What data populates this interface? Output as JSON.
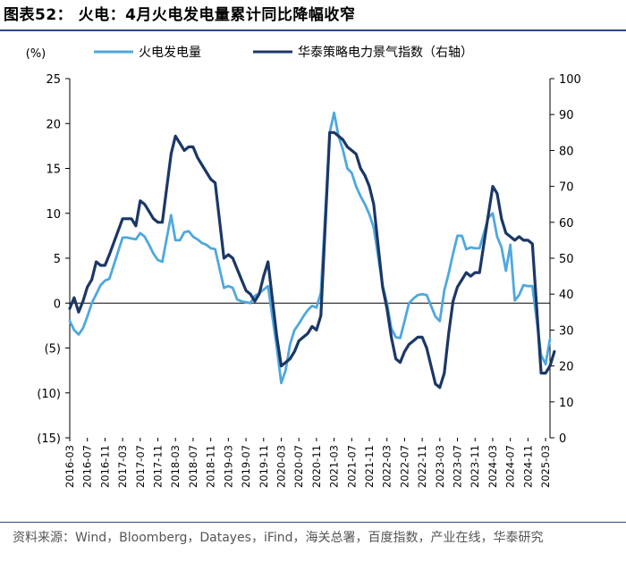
{
  "header": {
    "title": "图表52：  火电：4月火电发电量累计同比降幅收窄"
  },
  "footer": {
    "source": "资料来源：Wind，Bloomberg，Datayes，iFind，海关总署，百度指数，产业在线，华泰研究"
  },
  "colors": {
    "series_light": "#4ea8de",
    "series_dark": "#1b3766",
    "rule": "#2b4a7a"
  },
  "chart_data": {
    "type": "line",
    "left_axis": {
      "unit_label": "(%)",
      "ylim": [
        -15,
        25
      ],
      "ticks": [
        25,
        20,
        15,
        10,
        5,
        0,
        -5,
        -10,
        -15
      ],
      "tick_labels": [
        "25",
        "20",
        "15",
        "10",
        "5",
        "0",
        "(5)",
        "(10)",
        "(15)"
      ]
    },
    "right_axis": {
      "ylim": [
        0,
        100
      ],
      "ticks": [
        100,
        90,
        80,
        70,
        60,
        50,
        40,
        30,
        20,
        10,
        0
      ],
      "tick_labels": [
        "100",
        "90",
        "80",
        "70",
        "60",
        "50",
        "40",
        "30",
        "20",
        "10",
        "0"
      ]
    },
    "x_tick_labels": [
      "2016-03",
      "2016-07",
      "2016-11",
      "2017-03",
      "2017-07",
      "2017-11",
      "2018-03",
      "2018-07",
      "2018-11",
      "2019-03",
      "2019-07",
      "2019-11",
      "2020-03",
      "2020-07",
      "2020-11",
      "2021-03",
      "2021-07",
      "2021-11",
      "2022-03",
      "2022-07",
      "2022-11",
      "2023-03",
      "2023-07",
      "2023-11",
      "2024-03",
      "2024-07",
      "2024-11",
      "2025-03"
    ],
    "x_start": "2016-03",
    "x_end": "2025-04",
    "grid": false,
    "legend_position": "top",
    "series": [
      {
        "name": "火电发电量",
        "axis": "left",
        "color": "#4ea8de",
        "points": [
          [
            "2016-03",
            -2.0
          ],
          [
            "2016-04",
            -3.0
          ],
          [
            "2016-05",
            -3.5
          ],
          [
            "2016-06",
            -2.8
          ],
          [
            "2016-07",
            -1.5
          ],
          [
            "2016-08",
            0.0
          ],
          [
            "2016-09",
            1.0
          ],
          [
            "2016-10",
            2.0
          ],
          [
            "2016-11",
            2.5
          ],
          [
            "2016-12",
            2.7
          ],
          [
            "2017-03",
            7.3
          ],
          [
            "2017-04",
            7.3
          ],
          [
            "2017-05",
            7.2
          ],
          [
            "2017-06",
            7.1
          ],
          [
            "2017-07",
            7.8
          ],
          [
            "2017-08",
            7.4
          ],
          [
            "2017-09",
            6.5
          ],
          [
            "2017-10",
            5.5
          ],
          [
            "2017-11",
            4.8
          ],
          [
            "2017-12",
            4.6
          ],
          [
            "2018-02",
            9.8
          ],
          [
            "2018-03",
            7.0
          ],
          [
            "2018-04",
            7.0
          ],
          [
            "2018-05",
            7.9
          ],
          [
            "2018-06",
            8.0
          ],
          [
            "2018-07",
            7.4
          ],
          [
            "2018-08",
            7.1
          ],
          [
            "2018-09",
            6.7
          ],
          [
            "2018-10",
            6.5
          ],
          [
            "2018-11",
            6.1
          ],
          [
            "2018-12",
            6.0
          ],
          [
            "2019-02",
            1.7
          ],
          [
            "2019-03",
            1.9
          ],
          [
            "2019-04",
            1.7
          ],
          [
            "2019-05",
            0.4
          ],
          [
            "2019-06",
            0.2
          ],
          [
            "2019-07",
            0.1
          ],
          [
            "2019-08",
            0.0
          ],
          [
            "2019-09",
            0.8
          ],
          [
            "2019-10",
            1.1
          ],
          [
            "2019-11",
            1.5
          ],
          [
            "2019-12",
            1.9
          ],
          [
            "2020-02",
            -5.0
          ],
          [
            "2020-03",
            -8.9
          ],
          [
            "2020-04",
            -7.5
          ],
          [
            "2020-05",
            -4.6
          ],
          [
            "2020-06",
            -3.0
          ],
          [
            "2020-07",
            -2.3
          ],
          [
            "2020-08",
            -1.5
          ],
          [
            "2020-09",
            -0.8
          ],
          [
            "2020-10",
            -0.3
          ],
          [
            "2020-11",
            -0.5
          ],
          [
            "2020-12",
            1.2
          ],
          [
            "2021-02",
            19.0
          ],
          [
            "2021-03",
            21.2
          ],
          [
            "2021-04",
            18.6
          ],
          [
            "2021-05",
            17.1
          ],
          [
            "2021-06",
            15.0
          ],
          [
            "2021-07",
            14.5
          ],
          [
            "2021-08",
            13.0
          ],
          [
            "2021-09",
            11.9
          ],
          [
            "2021-10",
            11.0
          ],
          [
            "2021-11",
            9.9
          ],
          [
            "2021-12",
            8.4
          ],
          [
            "2022-02",
            2.0
          ],
          [
            "2022-03",
            0.0
          ],
          [
            "2022-04",
            -2.8
          ],
          [
            "2022-05",
            -3.8
          ],
          [
            "2022-06",
            -3.9
          ],
          [
            "2022-07",
            -2.0
          ],
          [
            "2022-08",
            0.0
          ],
          [
            "2022-09",
            0.5
          ],
          [
            "2022-10",
            0.9
          ],
          [
            "2022-11",
            1.0
          ],
          [
            "2022-12",
            0.9
          ],
          [
            "2023-02",
            -1.5
          ],
          [
            "2023-03",
            -2.0
          ],
          [
            "2023-04",
            1.4
          ],
          [
            "2023-05",
            3.3
          ],
          [
            "2023-06",
            5.5
          ],
          [
            "2023-07",
            7.5
          ],
          [
            "2023-08",
            7.5
          ],
          [
            "2023-09",
            6.0
          ],
          [
            "2023-10",
            6.2
          ],
          [
            "2023-11",
            6.1
          ],
          [
            "2023-12",
            6.1
          ],
          [
            "2024-02",
            9.5
          ],
          [
            "2024-03",
            10.0
          ],
          [
            "2024-04",
            7.4
          ],
          [
            "2024-05",
            6.2
          ],
          [
            "2024-06",
            3.6
          ],
          [
            "2024-07",
            6.5
          ],
          [
            "2024-08",
            0.3
          ],
          [
            "2024-09",
            0.9
          ],
          [
            "2024-10",
            2.0
          ],
          [
            "2024-11",
            1.9
          ],
          [
            "2024-12",
            1.9
          ],
          [
            "2025-02",
            -5.8
          ],
          [
            "2025-03",
            -6.8
          ],
          [
            "2025-04",
            -4.0
          ]
        ]
      },
      {
        "name": "华泰策略电力景气指数（右轴）",
        "axis": "right",
        "color": "#1b3766",
        "points": [
          [
            "2016-03",
            36
          ],
          [
            "2016-04",
            39
          ],
          [
            "2016-05",
            35
          ],
          [
            "2016-06",
            38
          ],
          [
            "2016-07",
            42
          ],
          [
            "2016-08",
            44
          ],
          [
            "2016-09",
            49
          ],
          [
            "2016-10",
            48
          ],
          [
            "2016-11",
            48
          ],
          [
            "2016-12",
            51
          ],
          [
            "2017-03",
            61
          ],
          [
            "2017-04",
            61
          ],
          [
            "2017-05",
            61
          ],
          [
            "2017-06",
            59
          ],
          [
            "2017-07",
            66
          ],
          [
            "2017-08",
            65
          ],
          [
            "2017-09",
            63
          ],
          [
            "2017-10",
            61
          ],
          [
            "2017-11",
            60
          ],
          [
            "2017-12",
            60
          ],
          [
            "2018-02",
            79
          ],
          [
            "2018-03",
            84
          ],
          [
            "2018-04",
            82
          ],
          [
            "2018-05",
            80
          ],
          [
            "2018-06",
            81
          ],
          [
            "2018-07",
            81
          ],
          [
            "2018-08",
            78
          ],
          [
            "2018-09",
            76
          ],
          [
            "2018-10",
            74
          ],
          [
            "2018-11",
            72
          ],
          [
            "2018-12",
            71
          ],
          [
            "2019-02",
            50
          ],
          [
            "2019-03",
            51
          ],
          [
            "2019-04",
            50
          ],
          [
            "2019-05",
            47
          ],
          [
            "2019-06",
            44
          ],
          [
            "2019-07",
            41
          ],
          [
            "2019-08",
            40
          ],
          [
            "2019-09",
            38
          ],
          [
            "2019-10",
            40
          ],
          [
            "2019-11",
            45
          ],
          [
            "2019-12",
            49
          ],
          [
            "2020-02",
            28
          ],
          [
            "2020-03",
            20
          ],
          [
            "2020-04",
            21
          ],
          [
            "2020-05",
            22
          ],
          [
            "2020-06",
            24
          ],
          [
            "2020-07",
            27
          ],
          [
            "2020-08",
            28
          ],
          [
            "2020-09",
            29
          ],
          [
            "2020-10",
            31
          ],
          [
            "2020-11",
            30
          ],
          [
            "2020-12",
            34
          ],
          [
            "2021-02",
            85
          ],
          [
            "2021-03",
            85
          ],
          [
            "2021-04",
            84
          ],
          [
            "2021-05",
            83
          ],
          [
            "2021-06",
            81
          ],
          [
            "2021-07",
            80
          ],
          [
            "2021-08",
            79
          ],
          [
            "2021-09",
            75
          ],
          [
            "2021-10",
            73
          ],
          [
            "2021-11",
            70
          ],
          [
            "2021-12",
            65
          ],
          [
            "2022-02",
            42
          ],
          [
            "2022-03",
            36
          ],
          [
            "2022-04",
            28
          ],
          [
            "2022-05",
            22
          ],
          [
            "2022-06",
            21
          ],
          [
            "2022-07",
            24
          ],
          [
            "2022-08",
            26
          ],
          [
            "2022-09",
            27
          ],
          [
            "2022-10",
            28
          ],
          [
            "2022-11",
            28
          ],
          [
            "2022-12",
            25
          ],
          [
            "2023-02",
            15
          ],
          [
            "2023-03",
            14
          ],
          [
            "2023-04",
            18
          ],
          [
            "2023-05",
            29
          ],
          [
            "2023-06",
            38
          ],
          [
            "2023-07",
            42
          ],
          [
            "2023-08",
            44
          ],
          [
            "2023-09",
            46
          ],
          [
            "2023-10",
            45
          ],
          [
            "2023-11",
            46
          ],
          [
            "2023-12",
            46
          ],
          [
            "2024-02",
            62
          ],
          [
            "2024-03",
            70
          ],
          [
            "2024-04",
            68
          ],
          [
            "2024-05",
            61
          ],
          [
            "2024-06",
            57
          ],
          [
            "2024-07",
            56
          ],
          [
            "2024-08",
            55
          ],
          [
            "2024-09",
            56
          ],
          [
            "2024-10",
            55
          ],
          [
            "2024-11",
            55
          ],
          [
            "2024-12",
            54
          ],
          [
            "2025-02",
            18
          ],
          [
            "2025-03",
            18
          ],
          [
            "2025-04",
            20
          ],
          [
            "2025-05",
            24
          ]
        ]
      }
    ]
  }
}
